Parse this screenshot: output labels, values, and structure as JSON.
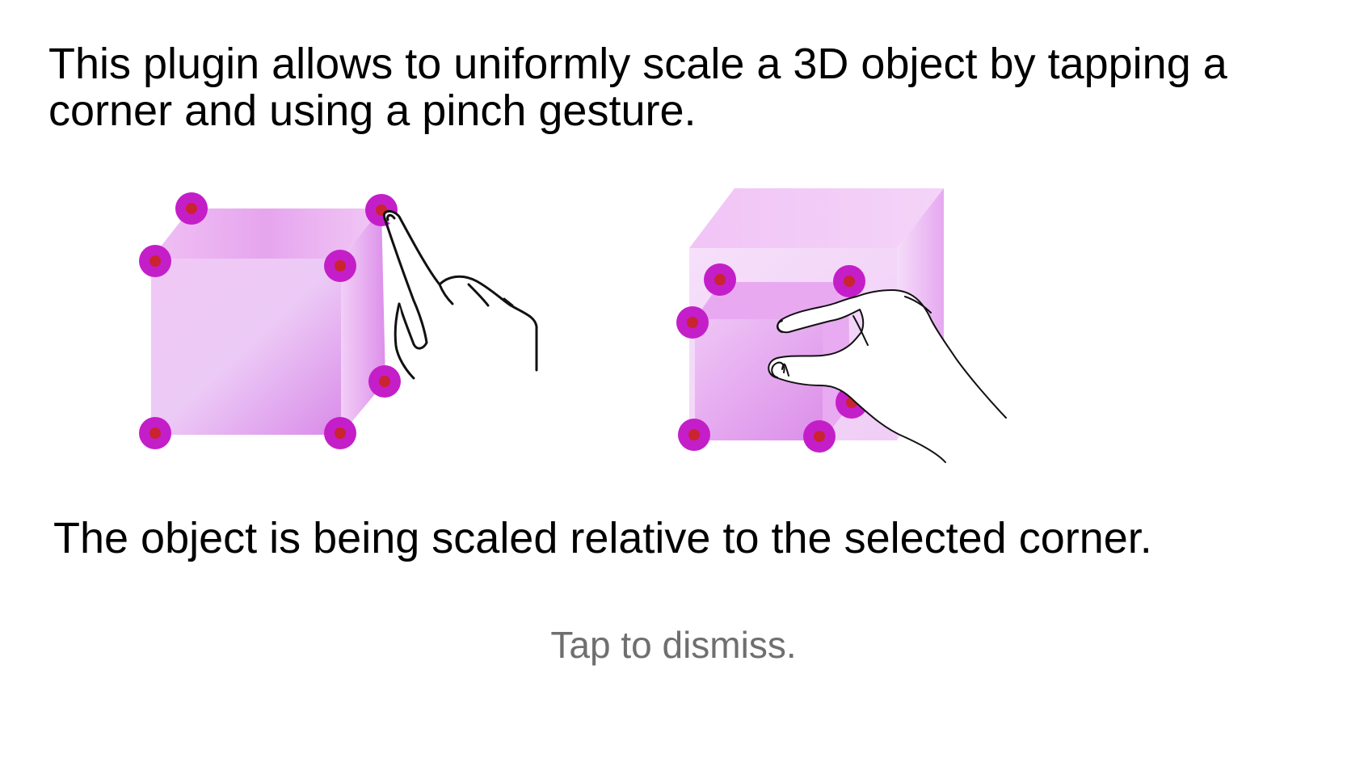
{
  "intro_text": "This plugin allows to uniformly scale a 3D object by tapping a corner and using a pinch gesture.",
  "caption_text": "The object is being scaled relative to the selected corner.",
  "dismiss_text": "Tap to dismiss.",
  "colors": {
    "background": "#ffffff",
    "text": "#000000",
    "dismiss_text": "#6f6f6f",
    "cube_light": "#f1cdf7",
    "cube_mid": "#e49ef0",
    "corner_outer": "#c41ec9",
    "corner_inner": "#c9242f"
  },
  "illustrations": [
    {
      "name": "tap-corner",
      "icon": "hand-pointer-icon"
    },
    {
      "name": "pinch-scale",
      "icon": "hand-pinch-icon"
    }
  ]
}
